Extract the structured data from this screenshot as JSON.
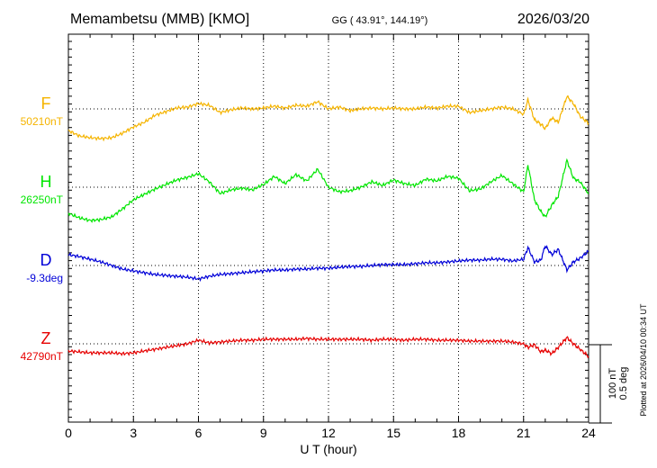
{
  "header": {
    "station": "Memambetsu (MMB)  [KMO]",
    "coords": "GG ( 43.91°, 144.19°)",
    "date": "2026/03/20"
  },
  "footer": {
    "plotted": "Plotted at 2026/04/10 00:34 UT",
    "scale_nt": "100 nT",
    "scale_deg": "0.5 deg"
  },
  "colors": {
    "F": "#f5b400",
    "H": "#00e600",
    "D": "#0000d8",
    "Z": "#e60000",
    "axis": "#000000"
  },
  "chart_data": {
    "type": "line",
    "title": "Memambetsu (MMB)  [KMO]",
    "xlabel": "U T (hour)",
    "ylabel": "",
    "xlim": [
      0,
      24
    ],
    "xticks": [
      0,
      3,
      6,
      9,
      12,
      15,
      18,
      21,
      24
    ],
    "grid": true,
    "scale_bar": "100 nT / 0.5 deg",
    "series": [
      {
        "name": "F",
        "baseline": "50210nT",
        "color": "#f5b400",
        "x": [
          0,
          0.5,
          1,
          1.5,
          2,
          2.5,
          3,
          3.5,
          4,
          4.5,
          5,
          5.5,
          6,
          6.5,
          7,
          7.5,
          8,
          8.5,
          9,
          9.5,
          10,
          10.5,
          11,
          11.5,
          12,
          12.5,
          13,
          13.5,
          14,
          14.5,
          15,
          15.5,
          16,
          16.5,
          17,
          17.5,
          18,
          18.5,
          19,
          19.5,
          20,
          20.5,
          21,
          21.2,
          21.5,
          21.8,
          22,
          22.3,
          22.6,
          23,
          23.3,
          23.6,
          24
        ],
        "values": [
          -24,
          -30,
          -32,
          -33,
          -32,
          -27,
          -20,
          -15,
          -7,
          -3,
          1,
          2,
          6,
          4,
          -4,
          -1,
          1,
          0,
          1,
          3,
          1,
          4,
          3,
          8,
          0,
          2,
          -2,
          0,
          1,
          0,
          1,
          0,
          0,
          2,
          1,
          3,
          3,
          -4,
          -2,
          0,
          2,
          0,
          -6,
          10,
          -12,
          -17,
          -22,
          -10,
          -15,
          14,
          6,
          -8,
          -16
        ]
      },
      {
        "name": "H",
        "baseline": "26250nT",
        "color": "#00e600",
        "x": [
          0,
          0.5,
          1,
          1.5,
          2,
          2.5,
          3,
          3.5,
          4,
          4.5,
          5,
          5.5,
          6,
          6.5,
          7,
          7.5,
          8,
          8.5,
          9,
          9.5,
          10,
          10.5,
          11,
          11.5,
          12,
          12.5,
          13,
          13.5,
          14,
          14.5,
          15,
          15.5,
          16,
          16.5,
          17,
          17.5,
          18,
          18.5,
          19,
          19.5,
          20,
          20.5,
          21,
          21.2,
          21.5,
          21.8,
          22,
          22.3,
          22.6,
          23,
          23.3,
          23.6,
          24
        ],
        "values": [
          -29,
          -34,
          -37,
          -36,
          -33,
          -24,
          -14,
          -8,
          -2,
          3,
          8,
          11,
          15,
          6,
          -7,
          -3,
          -1,
          -3,
          3,
          12,
          4,
          14,
          7,
          20,
          0,
          -5,
          -4,
          0,
          6,
          2,
          8,
          4,
          2,
          9,
          7,
          12,
          10,
          -4,
          -2,
          6,
          13,
          4,
          -5,
          25,
          -14,
          -27,
          -33,
          -20,
          -10,
          30,
          10,
          6,
          -7
        ]
      },
      {
        "name": "D",
        "baseline": "-9.3deg",
        "color": "#0000d8",
        "x": [
          0,
          0.5,
          1,
          1.5,
          2,
          2.5,
          3,
          3.5,
          4,
          4.5,
          5,
          5.5,
          6,
          6.5,
          7,
          7.5,
          8,
          8.5,
          9,
          9.5,
          10,
          10.5,
          11,
          11.5,
          12,
          12.5,
          13,
          13.5,
          14,
          14.5,
          15,
          15.5,
          16,
          16.5,
          17,
          17.5,
          18,
          18.5,
          19,
          19.5,
          20,
          20.5,
          21,
          21.2,
          21.5,
          21.8,
          22,
          22.3,
          22.6,
          23,
          23.3,
          23.6,
          24
        ],
        "values": [
          12,
          10,
          7,
          4,
          0,
          -4,
          -6,
          -8,
          -10,
          -11,
          -12,
          -13,
          -15,
          -12,
          -10,
          -9,
          -8,
          -7,
          -6,
          -5,
          -5,
          -4,
          -4,
          -3,
          -3,
          -2,
          -1,
          -1,
          0,
          1,
          1,
          1,
          2,
          3,
          3,
          4,
          5,
          6,
          6,
          7,
          7,
          5,
          7,
          20,
          4,
          6,
          22,
          12,
          18,
          -5,
          4,
          8,
          16
        ]
      },
      {
        "name": "Z",
        "baseline": "42790nT",
        "color": "#e60000",
        "x": [
          0,
          0.5,
          1,
          1.5,
          2,
          2.5,
          3,
          3.5,
          4,
          4.5,
          5,
          5.5,
          6,
          6.5,
          7,
          7.5,
          8,
          8.5,
          9,
          9.5,
          10,
          10.5,
          11,
          11.5,
          12,
          12.5,
          13,
          13.5,
          14,
          14.5,
          15,
          15.5,
          16,
          16.5,
          17,
          17.5,
          18,
          18.5,
          19,
          19.5,
          20,
          20.5,
          21,
          21.2,
          21.5,
          21.8,
          22,
          22.3,
          22.6,
          23,
          23.3,
          23.6,
          24
        ],
        "values": [
          -8,
          -9,
          -10,
          -10,
          -10,
          -11,
          -10,
          -8,
          -6,
          -4,
          -2,
          0,
          4,
          1,
          2,
          3,
          4,
          4,
          5,
          5,
          5,
          5,
          6,
          5,
          5,
          5,
          5,
          5,
          4,
          5,
          5,
          4,
          5,
          5,
          4,
          4,
          4,
          3,
          3,
          3,
          3,
          2,
          0,
          -4,
          -1,
          -9,
          -7,
          -11,
          -4,
          7,
          0,
          -6,
          -14
        ]
      }
    ]
  }
}
